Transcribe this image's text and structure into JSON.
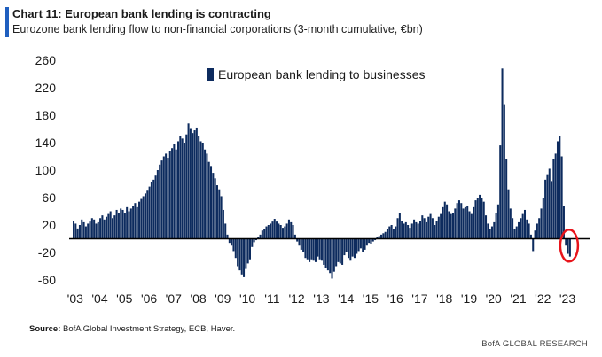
{
  "header": {
    "title": "Chart 11: European bank lending is contracting",
    "subtitle": "Eurozone bank lending flow to non-financial corporations (3-month cumulative, €bn)"
  },
  "footer": {
    "source_label": "Source:",
    "source_text": "BofA Global Investment Strategy, ECB, Haver.",
    "credit": "BofA GLOBAL RESEARCH"
  },
  "chart_data": {
    "type": "bar",
    "title": "Chart 11: European bank lending is contracting",
    "subtitle": "Eurozone bank lending flow to non-financial corporations (3-month cumulative, €bn)",
    "xlabel": "",
    "ylabel": "",
    "ylim": [
      -60,
      260
    ],
    "yticks": [
      260,
      220,
      180,
      140,
      100,
      60,
      20,
      -20,
      -60
    ],
    "xticks": [
      "'03",
      "'04",
      "'05",
      "'06",
      "'07",
      "'08",
      "'09",
      "'10",
      "'11",
      "'12",
      "'13",
      "'14",
      "'15",
      "'16",
      "'17",
      "'18",
      "'19",
      "'20",
      "'21",
      "'22",
      "'23"
    ],
    "x_start": "2003-01",
    "frequency": "monthly",
    "grid": false,
    "legend_position": "top",
    "bar_color": "#0d2b5e",
    "highlight": {
      "year_month": "2023-03",
      "color": "#e8141b"
    },
    "series": [
      {
        "name": "European bank lending to businesses",
        "values": [
          26,
          22,
          15,
          20,
          28,
          24,
          18,
          22,
          25,
          30,
          28,
          22,
          24,
          30,
          34,
          28,
          32,
          36,
          40,
          30,
          34,
          42,
          38,
          44,
          42,
          38,
          46,
          40,
          44,
          48,
          52,
          46,
          54,
          58,
          62,
          66,
          70,
          76,
          82,
          86,
          92,
          100,
          108,
          114,
          120,
          124,
          118,
          128,
          132,
          138,
          130,
          142,
          150,
          146,
          140,
          152,
          168,
          160,
          154,
          158,
          162,
          150,
          142,
          140,
          130,
          124,
          112,
          106,
          96,
          88,
          78,
          72,
          62,
          42,
          22,
          6,
          -6,
          -10,
          -18,
          -28,
          -40,
          -46,
          -52,
          -56,
          -44,
          -36,
          -30,
          -12,
          -5,
          -2,
          2,
          6,
          12,
          14,
          18,
          20,
          22,
          25,
          29,
          25,
          22,
          20,
          16,
          18,
          22,
          28,
          24,
          20,
          6,
          -4,
          -10,
          -16,
          -20,
          -28,
          -30,
          -34,
          -30,
          -32,
          -34,
          -26,
          -30,
          -32,
          -38,
          -42,
          -46,
          -50,
          -58,
          -48,
          -40,
          -34,
          -36,
          -38,
          -24,
          -20,
          -28,
          -32,
          -26,
          -28,
          -22,
          -18,
          -14,
          -20,
          -16,
          -10,
          -6,
          -8,
          -4,
          -2,
          2,
          4,
          6,
          8,
          10,
          14,
          18,
          20,
          14,
          18,
          30,
          38,
          26,
          22,
          24,
          20,
          16,
          22,
          28,
          24,
          22,
          26,
          34,
          30,
          24,
          32,
          36,
          30,
          20,
          26,
          32,
          36,
          46,
          54,
          50,
          40,
          36,
          38,
          44,
          52,
          56,
          52,
          44,
          46,
          48,
          40,
          36,
          46,
          56,
          60,
          64,
          60,
          54,
          34,
          22,
          14,
          18,
          24,
          38,
          50,
          136,
          248,
          196,
          116,
          72,
          44,
          30,
          14,
          18,
          24,
          30,
          36,
          42,
          28,
          22,
          6,
          -18,
          12,
          22,
          30,
          44,
          60,
          86,
          94,
          102,
          84,
          116,
          124,
          142,
          150,
          120,
          48,
          -10,
          -22,
          -26
        ]
      }
    ]
  }
}
